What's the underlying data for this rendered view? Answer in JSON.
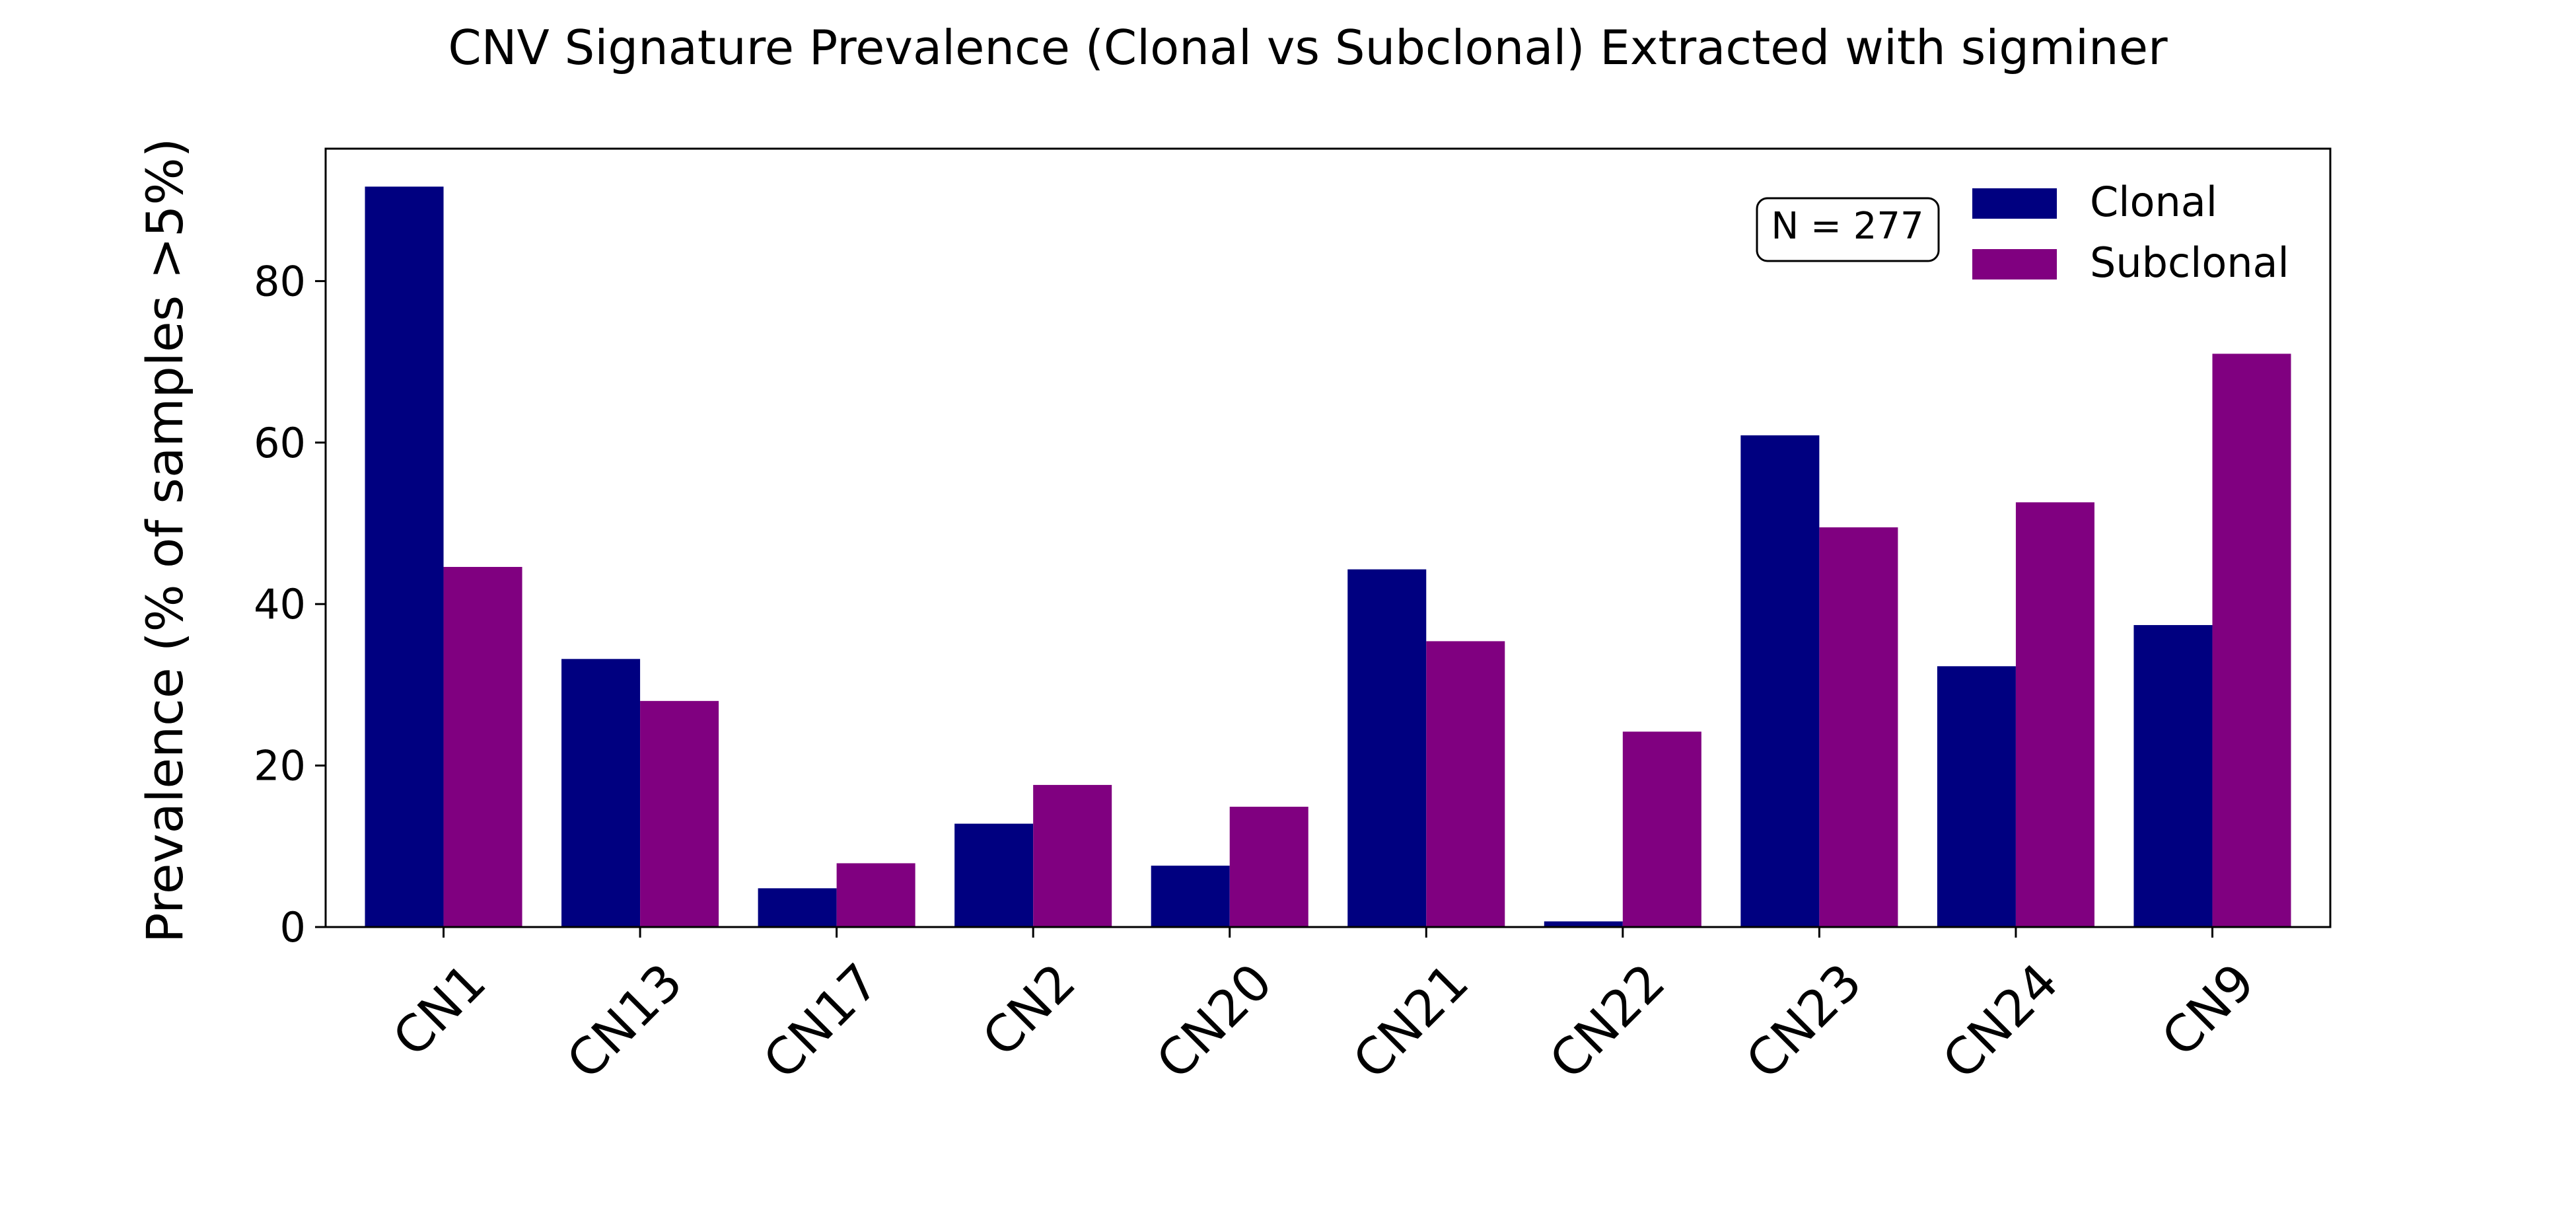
{
  "chart_data": {
    "type": "bar",
    "title": "CNV Signature Prevalence (Clonal vs Subclonal) Extracted with sigminer",
    "xlabel": "",
    "ylabel": "Prevalence (% of samples >5%)",
    "categories": [
      "CN1",
      "CN13",
      "CN17",
      "CN2",
      "CN20",
      "CN21",
      "CN22",
      "CN23",
      "CN24",
      "CN9"
    ],
    "series": [
      {
        "name": "Clonal",
        "color": "#000080",
        "values": [
          91.7,
          33.2,
          4.8,
          12.8,
          7.6,
          44.3,
          0.7,
          60.9,
          32.3,
          37.4
        ]
      },
      {
        "name": "Subclonal",
        "color": "#800080",
        "values": [
          44.6,
          28.0,
          7.9,
          17.6,
          14.9,
          35.4,
          24.2,
          49.5,
          52.6,
          71.0
        ]
      }
    ],
    "ylim": [
      0,
      96.4
    ],
    "yticks": [
      0,
      20,
      40,
      60,
      80
    ],
    "grid": false,
    "legend_position": "top-right",
    "annotation": "N = 277"
  }
}
